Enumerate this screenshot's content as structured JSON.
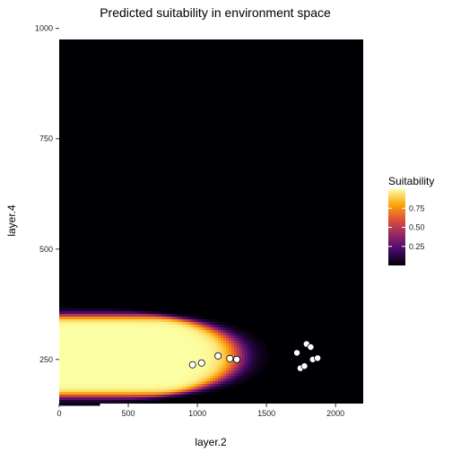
{
  "chart_data": {
    "type": "heatmap",
    "title": "Predicted suitability in environment space",
    "xlabel": "layer.2",
    "ylabel": "layer.4",
    "xlim": [
      0,
      2200
    ],
    "ylim": [
      150,
      975
    ],
    "xticks": [
      0,
      500,
      1000,
      1500,
      2000
    ],
    "yticks": [
      250,
      500,
      750,
      1000
    ],
    "grid": false,
    "legend": {
      "title": "Suitability",
      "placement": "right",
      "ticks": [
        0.25,
        0.5,
        0.75
      ],
      "range": [
        0,
        1
      ],
      "colormap": [
        "#000004",
        "#420a68",
        "#932667",
        "#dd513a",
        "#fca50a",
        "#fcffa4"
      ]
    },
    "surface": {
      "description_of_shape": "high suitability band centered at layer.4 ~260, decaying with layer.2 beyond ~900",
      "y_center": 258,
      "y_halfwidth": 112,
      "x_edge": 1300
    },
    "points": {
      "x": [
        965,
        1030,
        1150,
        1235,
        1285,
        1720,
        1745,
        1775,
        1790,
        1820,
        1835,
        1870
      ],
      "y": [
        238,
        242,
        258,
        252,
        250,
        265,
        230,
        235,
        285,
        278,
        250,
        253
      ]
    }
  }
}
